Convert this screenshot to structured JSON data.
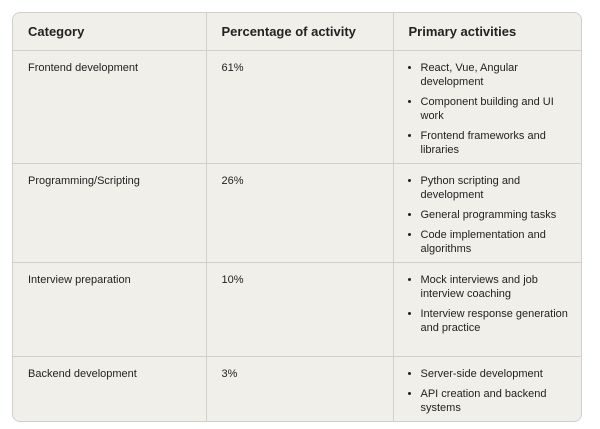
{
  "table": {
    "header": [
      "Category",
      "Percentage of activity",
      "Primary activities"
    ],
    "rows": [
      {
        "category": "Frontend development",
        "percentage": "61%",
        "activities": [
          "React, Vue, Angular development",
          "Component building and UI work",
          "Frontend frameworks and libraries"
        ]
      },
      {
        "category": "Programming/Scripting",
        "percentage": "26%",
        "activities": [
          "Python scripting and development",
          "General programming tasks",
          "Code implementation and algorithms"
        ]
      },
      {
        "category": "Interview preparation",
        "percentage": "10%",
        "activities": [
          "Mock interviews and job interview coaching",
          "Interview response generation and practice"
        ]
      },
      {
        "category": "Backend development",
        "percentage": "3%",
        "activities": [
          "Server-side development",
          "API creation and backend systems"
        ]
      }
    ]
  }
}
